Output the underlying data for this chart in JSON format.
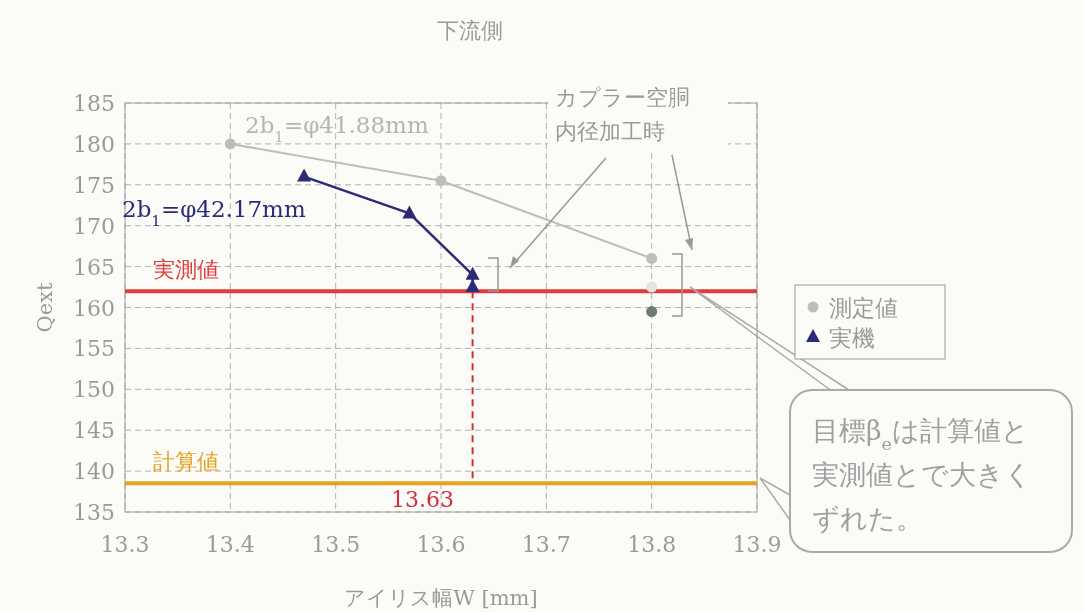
{
  "chart_data": {
    "type": "line",
    "title": "下流側",
    "xlabel": "アイリス幅W [mm]",
    "ylabel": "Qext",
    "xlim": [
      13.3,
      13.9
    ],
    "xticks": [
      13.3,
      13.4,
      13.5,
      13.6,
      13.7,
      13.8,
      13.9
    ],
    "ylim": [
      135,
      185
    ],
    "yticks": [
      135,
      140,
      145,
      150,
      155,
      160,
      165,
      170,
      175,
      180,
      185
    ],
    "grid": true,
    "legend": "right",
    "series": [
      {
        "name": "測定値",
        "type": "line",
        "marker": "circle",
        "color": "#bdbdbd",
        "x": [
          13.4,
          13.6,
          13.8
        ],
        "values": [
          180,
          175.5,
          166
        ]
      },
      {
        "type": "scatter",
        "marker": "circle",
        "colors": [
          "#e4e4e4",
          "#6f7a77"
        ],
        "x": [
          13.8,
          13.8
        ],
        "values": [
          162.5,
          159.5
        ]
      },
      {
        "name": "実機",
        "type": "line",
        "marker": "triangle",
        "color": "#2b2b7a",
        "x": [
          13.47,
          13.57,
          13.63,
          13.63
        ],
        "values": [
          176,
          171.5,
          164,
          162.5
        ]
      }
    ],
    "ref_lines": [
      {
        "axis": "y",
        "value": 162,
        "label": "実測値",
        "color": "#e23b3b"
      },
      {
        "axis": "y",
        "value": 138.5,
        "label": "計算値",
        "color": "#e6a21e"
      },
      {
        "axis": "x",
        "value": 13.63,
        "label": "13.63",
        "color": "#d0303a",
        "line_style": "dashed"
      }
    ],
    "annotations": [
      "2b$_{1}$=φ41.88mm",
      "2b$_{1}$=φ42.17mm",
      "カプラー空胴内径加工時",
      "目標β$_{e}$は計算値と実測値とで大きくずれた。"
    ]
  }
}
